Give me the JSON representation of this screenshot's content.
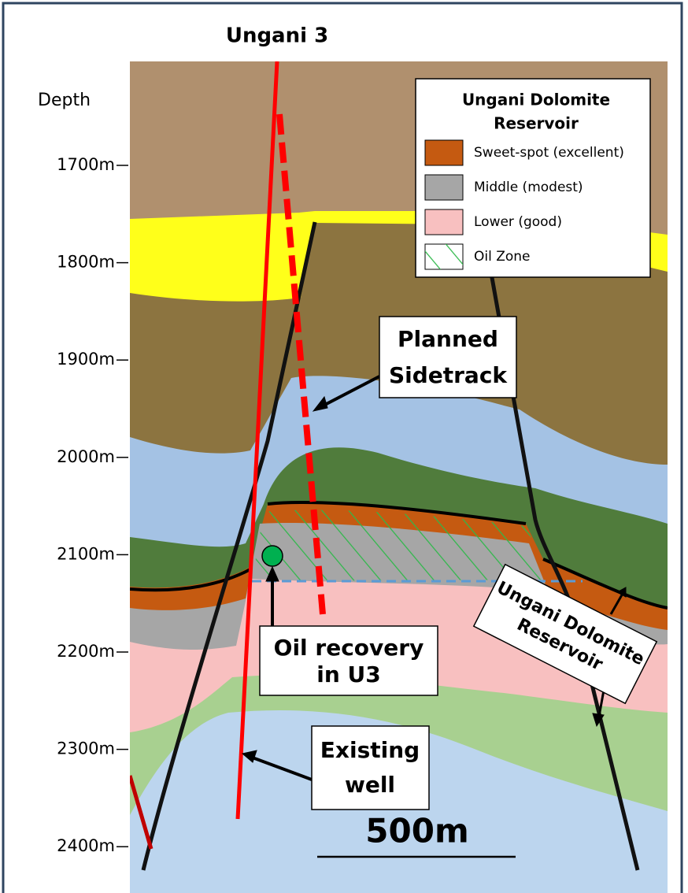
{
  "title": "Ungani 3",
  "depth_axis": {
    "label": "Depth",
    "ticks": [
      "1700m",
      "1800m",
      "1900m",
      "2000m",
      "2100m",
      "2200m",
      "2300m",
      "2400m"
    ]
  },
  "legend": {
    "title": [
      "Ungani Dolomite",
      "Reservoir"
    ],
    "items": [
      "Sweet-spot (excellent)",
      "Middle (modest)",
      "Lower (good)",
      "Oil Zone"
    ]
  },
  "callouts": {
    "planned_sidetrack": [
      "Planned",
      "Sidetrack"
    ],
    "oil_recovery": [
      "Oil recovery",
      "in U3"
    ],
    "existing_well": [
      "Existing",
      "well"
    ],
    "reservoir": [
      "Ungani Dolomite",
      "Reservoir"
    ]
  },
  "scale_bar": "500m"
}
